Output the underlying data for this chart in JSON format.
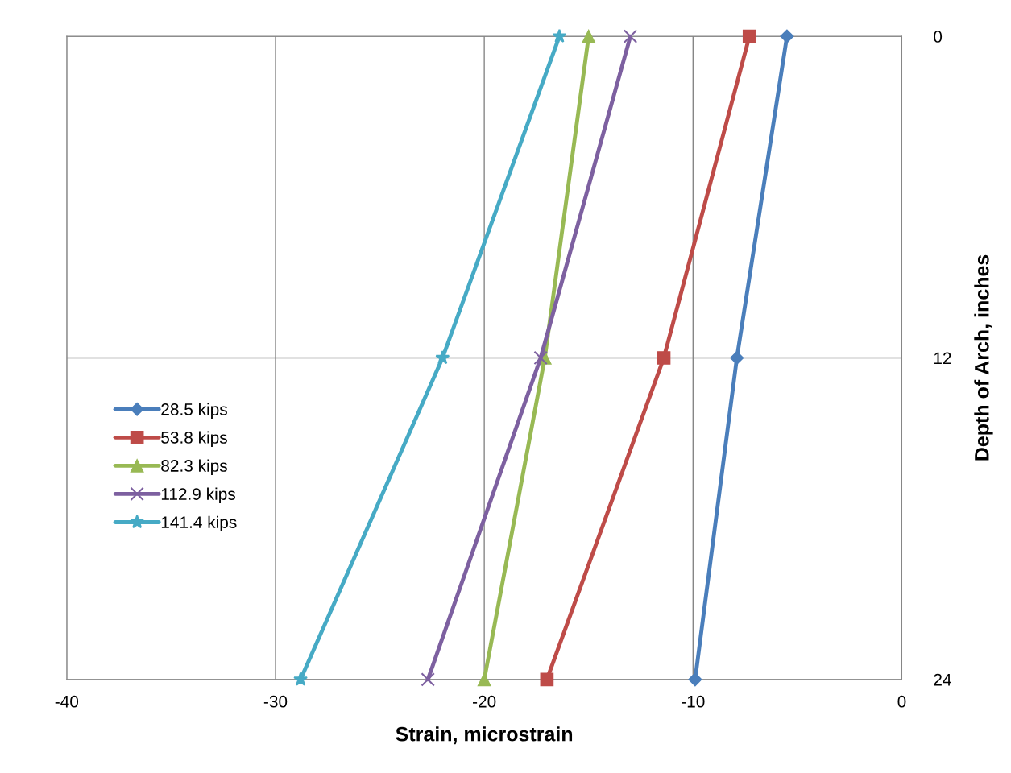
{
  "chart_data": {
    "type": "line",
    "xlabel": "Strain, microstrain",
    "ylabel": "Depth of Arch, inches",
    "xlim": [
      -40,
      0
    ],
    "xticks": [
      -40,
      -30,
      -20,
      -10,
      0
    ],
    "ylim": [
      24,
      0
    ],
    "yticks": [
      0,
      12,
      24
    ],
    "grid": true,
    "legend": "left",
    "line_style": "solid",
    "series": [
      {
        "name": "28.5 kips",
        "color": "#4a7ebb",
        "marker": "diamond",
        "x": [
          -5.5,
          -7.9,
          -9.9
        ],
        "values": [
          0,
          12,
          24
        ]
      },
      {
        "name": "53.8 kips",
        "color": "#be4b48",
        "marker": "square",
        "x": [
          -7.3,
          -11.4,
          -17.0
        ],
        "values": [
          0,
          12,
          24
        ]
      },
      {
        "name": "82.3 kips",
        "color": "#98b954",
        "marker": "triangle",
        "x": [
          -15.0,
          -17.1,
          -20.0
        ],
        "values": [
          0,
          12,
          24
        ]
      },
      {
        "name": "112.9 kips",
        "color": "#7d60a0",
        "marker": "cross",
        "x": [
          -13.0,
          -17.3,
          -22.7
        ],
        "values": [
          0,
          12,
          24
        ]
      },
      {
        "name": "141.4 kips",
        "color": "#46aac5",
        "marker": "star",
        "x": [
          -16.4,
          -22.0,
          -28.8
        ],
        "values": [
          0,
          12,
          24
        ]
      }
    ]
  }
}
